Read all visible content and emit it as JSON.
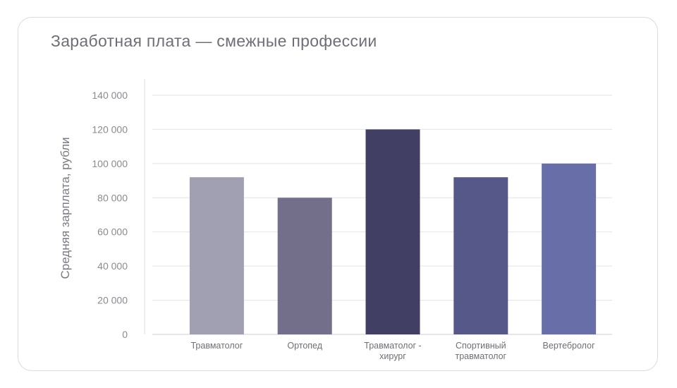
{
  "chart_data": {
    "type": "bar",
    "title": "Заработная плата — смежные профессии",
    "ylabel": "Средняя зарплата, рубли",
    "xlabel": "",
    "ylim": [
      0,
      140000
    ],
    "yticks": [
      0,
      20000,
      40000,
      60000,
      80000,
      100000,
      120000,
      140000
    ],
    "ytick_labels": [
      "0",
      "20 000",
      "40 000",
      "60 000",
      "80 000",
      "100 000",
      "120 000",
      "140 000"
    ],
    "grid": true,
    "categories": [
      [
        "Травматолог"
      ],
      [
        "Ортопед"
      ],
      [
        "Травматолог -",
        "хирург"
      ],
      [
        "Спортивный",
        "травматолог"
      ],
      [
        "Вертебролог"
      ]
    ],
    "values": [
      92000,
      80000,
      120000,
      92000,
      100000
    ],
    "colors": [
      "#a19fb2",
      "#736e8a",
      "#413f63",
      "#555889",
      "#686ea8"
    ]
  }
}
